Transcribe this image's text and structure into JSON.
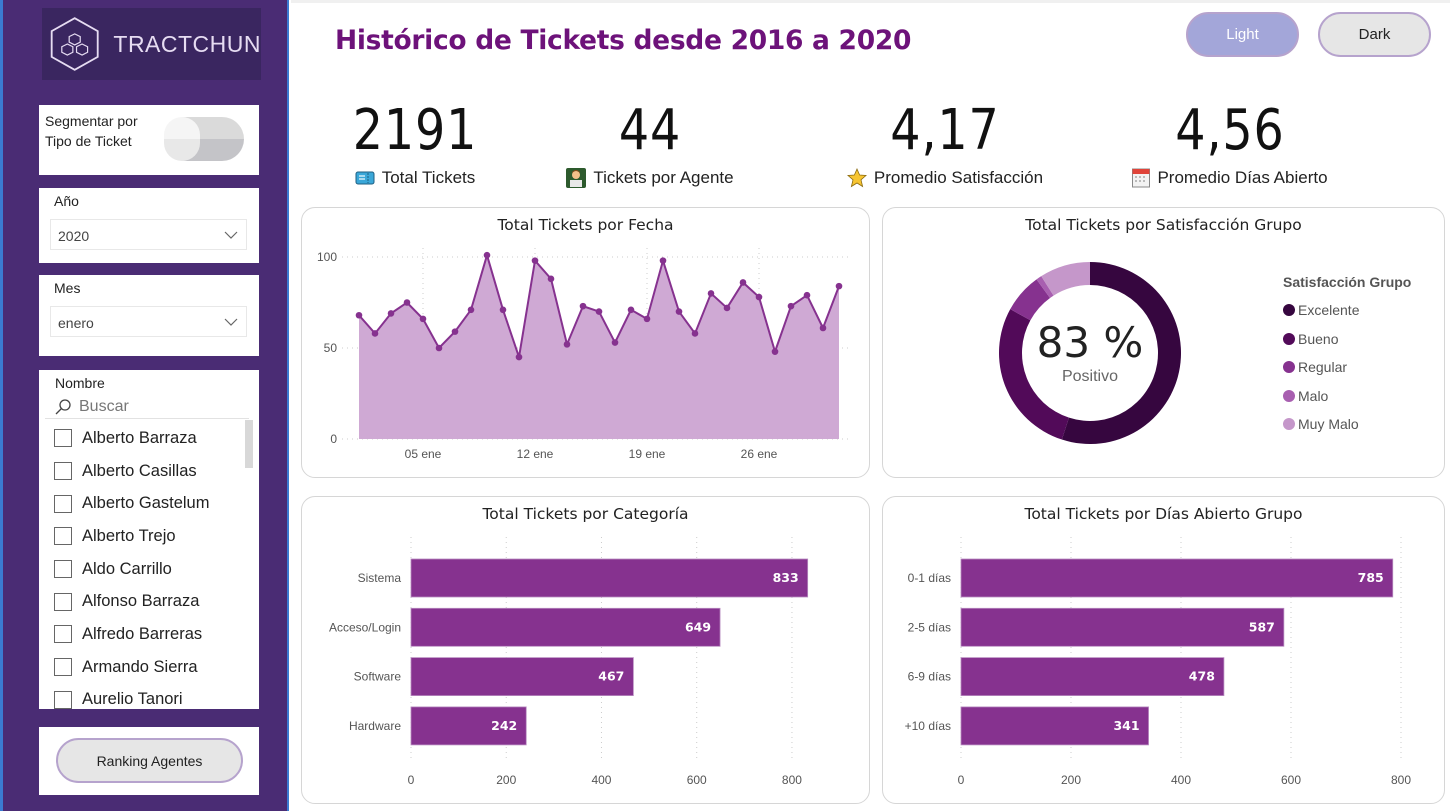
{
  "brand": {
    "name": "TRACTCHUN"
  },
  "sidebar": {
    "toggle": {
      "label_line1": "Segmentar por",
      "label_line2": "Tipo de Ticket",
      "state": "off"
    },
    "year_slicer": {
      "title": "Año",
      "value": "2020"
    },
    "month_slicer": {
      "title": "Mes",
      "value": "enero"
    },
    "name_slicer": {
      "title": "Nombre",
      "search_placeholder": "Buscar",
      "items": [
        {
          "label": "Alberto Barraza",
          "checked": false
        },
        {
          "label": "Alberto Casillas",
          "checked": false
        },
        {
          "label": "Alberto Gastelum",
          "checked": false
        },
        {
          "label": "Alberto Trejo",
          "checked": false
        },
        {
          "label": "Aldo Carrillo",
          "checked": false
        },
        {
          "label": "Alfonso Barraza",
          "checked": false
        },
        {
          "label": "Alfredo Barreras",
          "checked": false
        },
        {
          "label": "Armando Sierra",
          "checked": false
        },
        {
          "label": "Aurelio Tanori",
          "checked": false
        }
      ]
    },
    "ranking_button": "Ranking Agentes"
  },
  "header": {
    "title": "Histórico de Tickets desde 2016 a 2020",
    "light_button": "Light",
    "dark_button": "Dark"
  },
  "kpis": [
    {
      "value": "2191",
      "label": "Total Tickets",
      "icon": "ticket-icon"
    },
    {
      "value": "44",
      "label": "Tickets por Agente",
      "icon": "agent-at-computer-icon"
    },
    {
      "value": "4,17",
      "label": "Promedio Satisfacción",
      "icon": "star-icon"
    },
    {
      "value": "4,56",
      "label": "Promedio Días Abierto",
      "icon": "calendar-icon"
    }
  ],
  "colors": {
    "accent": "#6d127a",
    "bar": "#86328f",
    "area_fill": "#cfa9d4",
    "line": "#86328f",
    "sidebar": "#4a2c74"
  },
  "chart_data": [
    {
      "id": "line",
      "type": "area",
      "title": "Total Tickets por Fecha",
      "xlabel": "",
      "ylabel": "",
      "x": [
        1,
        2,
        3,
        4,
        5,
        6,
        7,
        8,
        9,
        10,
        11,
        12,
        13,
        14,
        15,
        16,
        17,
        18,
        19,
        20,
        21,
        22,
        23,
        24,
        25,
        26,
        27,
        28,
        29,
        30,
        31
      ],
      "x_tick_labels": [
        {
          "x": 5,
          "label": "05 ene"
        },
        {
          "x": 12,
          "label": "12 ene"
        },
        {
          "x": 19,
          "label": "19 ene"
        },
        {
          "x": 26,
          "label": "26 ene"
        }
      ],
      "values": [
        68,
        58,
        69,
        75,
        66,
        50,
        59,
        71,
        101,
        71,
        45,
        98,
        88,
        52,
        73,
        70,
        53,
        71,
        66,
        98,
        70,
        58,
        80,
        72,
        86,
        78,
        48,
        73,
        79,
        61,
        84
      ],
      "y_ticks": [
        0,
        50,
        100
      ],
      "ylim": [
        0,
        100
      ],
      "grid": true
    },
    {
      "id": "donut",
      "type": "pie",
      "title": "Total Tickets por Satisfacción Grupo",
      "center_value": "83 %",
      "center_label": "Positivo",
      "legend_title": "Satisfacción Grupo",
      "legend_position": "right",
      "categories": [
        "Excelente",
        "Bueno",
        "Regular",
        "Malo",
        "Muy Malo"
      ],
      "values": [
        55,
        28,
        7,
        1,
        9
      ],
      "colors": [
        "#36063f",
        "#520a59",
        "#86328f",
        "#a85fb0",
        "#c597ca"
      ]
    },
    {
      "id": "category",
      "type": "bar",
      "orientation": "horizontal",
      "title": "Total Tickets por Categoría",
      "categories": [
        "Sistema",
        "Acceso/Login",
        "Software",
        "Hardware"
      ],
      "values": [
        833,
        649,
        467,
        242
      ],
      "x_ticks": [
        0,
        200,
        400,
        600,
        800
      ],
      "xlim": [
        0,
        840
      ],
      "grid": true
    },
    {
      "id": "days",
      "type": "bar",
      "orientation": "horizontal",
      "title": "Total Tickets por Días Abierto Grupo",
      "categories": [
        "0-1 días",
        "2-5 días",
        "6-9 días",
        "+10 días"
      ],
      "values": [
        785,
        587,
        478,
        341
      ],
      "x_ticks": [
        0,
        200,
        400,
        600,
        800
      ],
      "xlim": [
        0,
        800
      ],
      "grid": true
    }
  ]
}
